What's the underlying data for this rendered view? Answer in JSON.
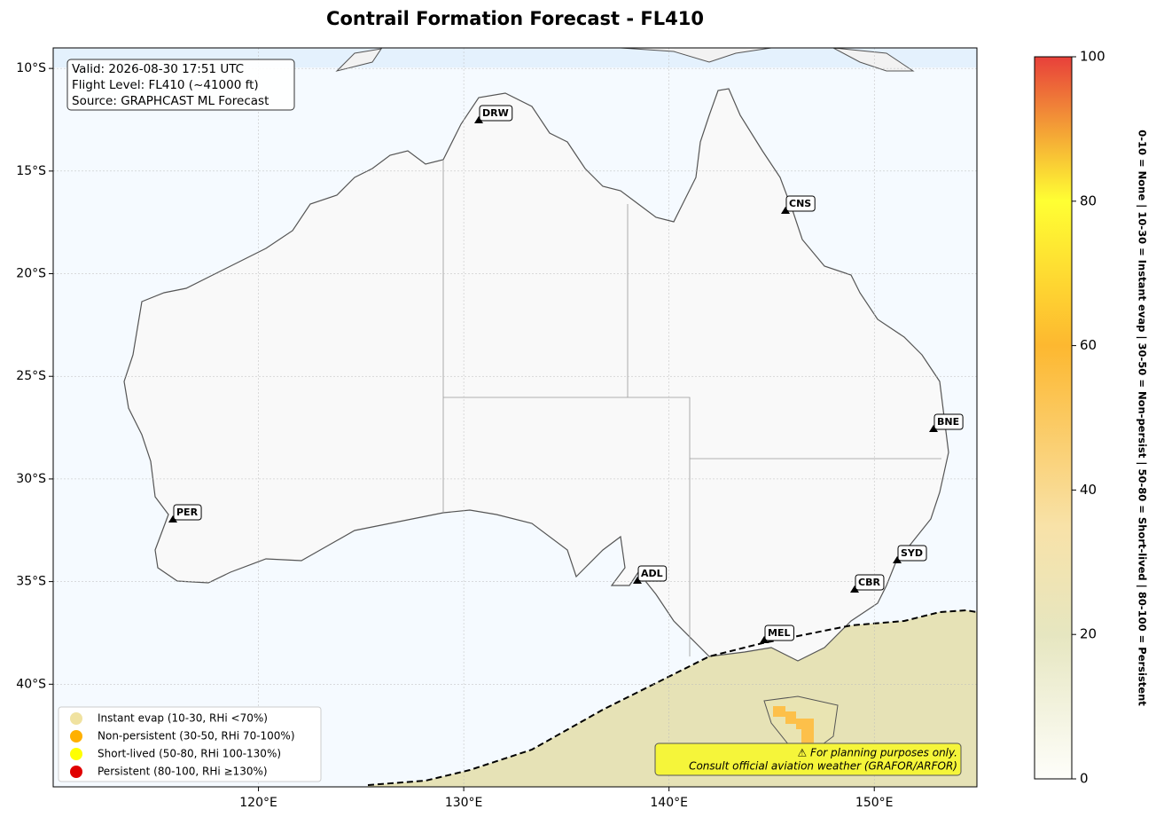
{
  "title": "Contrail Formation Forecast - FL410",
  "info": [
    "Valid: 2026-08-30 17:51 UTC",
    "Flight Level: FL410 (~41000 ft)",
    "Source: GRAPHCAST ML Forecast"
  ],
  "lonlim": [
    110,
    155
  ],
  "latlim": [
    -45,
    -9
  ],
  "lon_ticks": [
    {
      "value": 120,
      "label": "120°E"
    },
    {
      "value": 130,
      "label": "130°E"
    },
    {
      "value": 140,
      "label": "140°E"
    },
    {
      "value": 150,
      "label": "150°E"
    }
  ],
  "lat_ticks": [
    {
      "value": -10,
      "label": "10°S"
    },
    {
      "value": -15,
      "label": "15°S"
    },
    {
      "value": -20,
      "label": "20°S"
    },
    {
      "value": -25,
      "label": "25°S"
    },
    {
      "value": -30,
      "label": "30°S"
    },
    {
      "value": -35,
      "label": "35°S"
    },
    {
      "value": -40,
      "label": "40°S"
    }
  ],
  "cities": [
    "DRW",
    "CNS",
    "BNE",
    "PER",
    "ADL",
    "SYD",
    "CBR",
    "MEL"
  ],
  "legend": [
    {
      "label": "Instant evap (10-30, RHi <70%)",
      "color": "#f0e2a0"
    },
    {
      "label": "Non-persistent (30-50, RHi 70-100%)",
      "color": "#ffb000"
    },
    {
      "label": "Short-lived (50-80, RHi 100-130%)",
      "color": "#ffff00"
    },
    {
      "label": "Persistent (80-100, RHi ≥130%)",
      "color": "#e00000"
    }
  ],
  "note": [
    "⚠ For planning purposes only.",
    "Consult official aviation weather (GRAFOR/ARFOR)"
  ],
  "colorbar": {
    "lim": [
      0,
      100
    ],
    "ticks": [
      0,
      20,
      40,
      60,
      80,
      100
    ],
    "label": "0-10 = None  |  10-30 = Instant evap  |  30-50 = Non-persist  |  50-80 = Short-lived  |  80-100 = Persistent"
  }
}
